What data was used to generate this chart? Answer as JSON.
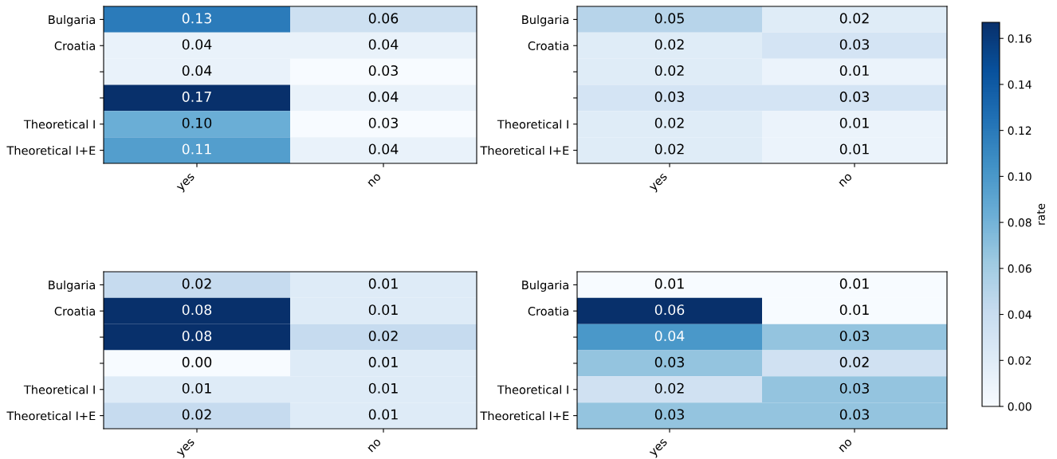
{
  "chart_data": [
    {
      "type": "heatmap",
      "categories": [
        "yes",
        "no"
      ],
      "y_categories": [
        "Bulgaria",
        "Croatia",
        null,
        null,
        "Theoretical I",
        "Theoretical I+E"
      ],
      "cells": [
        [
          0.13,
          0.06
        ],
        [
          0.04,
          0.04
        ],
        [
          0.04,
          0.03
        ],
        [
          0.17,
          0.04
        ],
        [
          0.1,
          0.03
        ],
        [
          0.11,
          0.04
        ]
      ],
      "cell_labels": [
        [
          "0.13",
          "0.06"
        ],
        [
          "0.04",
          "0.04"
        ],
        [
          "0.04",
          "0.03"
        ],
        [
          "0.17",
          "0.04"
        ],
        [
          "0.10",
          "0.03"
        ],
        [
          "0.11",
          "0.04"
        ]
      ]
    },
    {
      "type": "heatmap",
      "categories": [
        "yes",
        "no"
      ],
      "y_categories": [
        "Bulgaria",
        "Croatia",
        null,
        null,
        "Theoretical I",
        "Theoretical I+E"
      ],
      "cells": [
        [
          0.05,
          0.02
        ],
        [
          0.02,
          0.03
        ],
        [
          0.02,
          0.01
        ],
        [
          0.03,
          0.03
        ],
        [
          0.02,
          0.01
        ],
        [
          0.02,
          0.01
        ]
      ],
      "cell_labels": [
        [
          "0.05",
          "0.02"
        ],
        [
          "0.02",
          "0.03"
        ],
        [
          "0.02",
          "0.01"
        ],
        [
          "0.03",
          "0.03"
        ],
        [
          "0.02",
          "0.01"
        ],
        [
          "0.02",
          "0.01"
        ]
      ],
      "clim": [
        0,
        0.167
      ],
      "clabel": "rate",
      "cticks": [
        {
          "value": 0,
          "label": "0.00"
        },
        {
          "value": 0.02,
          "label": "0.02"
        },
        {
          "value": 0.04,
          "label": "0.04"
        },
        {
          "value": 0.06,
          "label": "0.06"
        },
        {
          "value": 0.08,
          "label": "0.08"
        },
        {
          "value": 0.1,
          "label": "0.10"
        },
        {
          "value": 0.12,
          "label": "0.12"
        },
        {
          "value": 0.14,
          "label": "0.14"
        },
        {
          "value": 0.16,
          "label": "0.16"
        }
      ]
    },
    {
      "type": "heatmap",
      "categories": [
        "yes",
        "no"
      ],
      "y_categories": [
        "Bulgaria",
        "Croatia",
        null,
        null,
        "Theoretical I",
        "Theoretical I+E"
      ],
      "cells": [
        [
          0.02,
          0.01
        ],
        [
          0.08,
          0.01
        ],
        [
          0.08,
          0.02
        ],
        [
          0.0,
          0.01
        ],
        [
          0.01,
          0.01
        ],
        [
          0.02,
          0.01
        ]
      ],
      "cell_labels": [
        [
          "0.02",
          "0.01"
        ],
        [
          "0.08",
          "0.01"
        ],
        [
          "0.08",
          "0.02"
        ],
        [
          "0.00",
          "0.01"
        ],
        [
          "0.01",
          "0.01"
        ],
        [
          "0.02",
          "0.01"
        ]
      ]
    },
    {
      "type": "heatmap",
      "categories": [
        "yes",
        "no"
      ],
      "y_categories": [
        "Bulgaria",
        "Croatia",
        null,
        null,
        "Theoretical I",
        "Theoretical I+E"
      ],
      "cells": [
        [
          0.01,
          0.01
        ],
        [
          0.06,
          0.01
        ],
        [
          0.04,
          0.03
        ],
        [
          0.03,
          0.02
        ],
        [
          0.02,
          0.03
        ],
        [
          0.03,
          0.03
        ]
      ],
      "cell_labels": [
        [
          "0.01",
          "0.01"
        ],
        [
          "0.06",
          "0.01"
        ],
        [
          "0.04",
          "0.03"
        ],
        [
          "0.03",
          "0.02"
        ],
        [
          "0.02",
          "0.03"
        ],
        [
          "0.03",
          "0.03"
        ]
      ]
    }
  ]
}
